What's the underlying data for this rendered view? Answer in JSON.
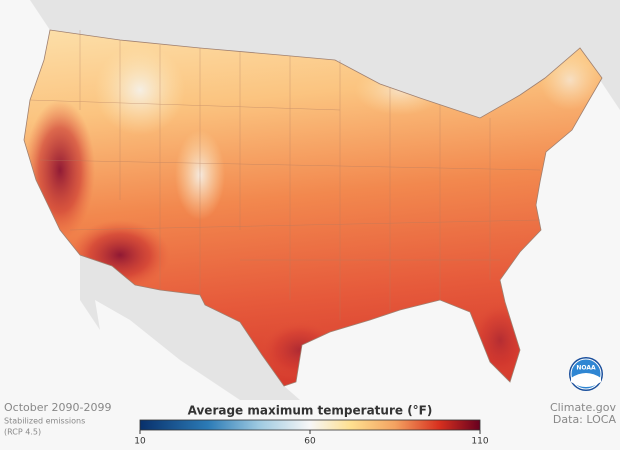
{
  "caption": {
    "period": "October 2090-2099",
    "scenario": "Stabilized emissions",
    "scenario_code": "(RCP 4.5)"
  },
  "credit": {
    "source": "Climate.gov",
    "data": "Data: LOCA"
  },
  "logo": "NOAA",
  "colorbar": {
    "title": "Average maximum temperature (°F)",
    "range": [
      10,
      110
    ],
    "ticks": [
      10,
      60,
      110
    ]
  }
}
